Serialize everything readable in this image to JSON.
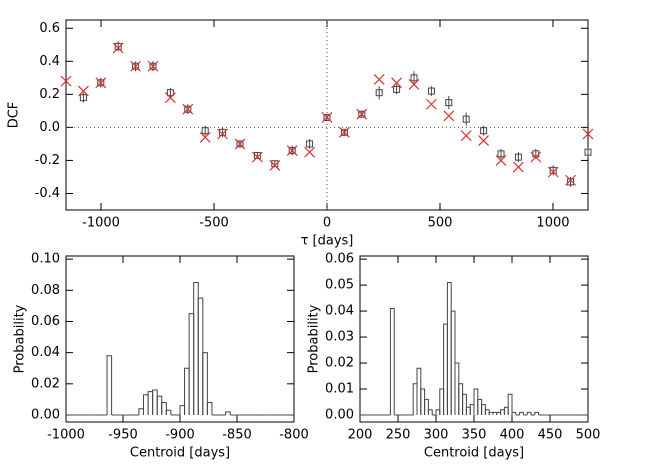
{
  "chart_data": [
    {
      "type": "scatter",
      "xlabel": "τ [days]",
      "ylabel": "DCF",
      "x": [
        -1155,
        -1078,
        -1001,
        -924,
        -847,
        -770,
        -693,
        -616,
        -539,
        -462,
        -385,
        -308,
        -231,
        -154,
        -77,
        0,
        77,
        154,
        231,
        308,
        385,
        462,
        539,
        616,
        693,
        770,
        847,
        924,
        1001,
        1078,
        1155
      ],
      "xlim": [
        -1155,
        1155
      ],
      "xticks": [
        -1000,
        -500,
        0,
        500,
        1000
      ],
      "ylim": [
        -0.5,
        0.65
      ],
      "yticks": [
        -0.4,
        -0.2,
        {
          "value": 0,
          "label": "0.0"
        },
        0.2,
        0.4,
        0.6
      ],
      "series": [
        {
          "color": "#444444",
          "marker": "square",
          "values": [
            null,
            0.18,
            0.27,
            0.49,
            0.37,
            0.37,
            0.21,
            0.11,
            -0.02,
            -0.03,
            -0.1,
            -0.17,
            -0.22,
            -0.14,
            -0.1,
            0.06,
            -0.03,
            0.08,
            0.21,
            0.23,
            0.3,
            0.22,
            0.15,
            0.05,
            -0.02,
            -0.16,
            -0.18,
            -0.16,
            -0.26,
            -0.33,
            -0.15
          ],
          "errors": [
            null,
            0.03,
            0.03,
            0.03,
            0.03,
            0.03,
            0.03,
            0.03,
            0.03,
            0.03,
            0.02,
            0.02,
            0.02,
            0.03,
            0.03,
            0.02,
            0.02,
            0.02,
            0.04,
            0.03,
            0.04,
            0.03,
            0.04,
            0.04,
            0.03,
            0.03,
            0.03,
            0.03,
            0.03,
            0.03,
            0.03
          ]
        },
        {
          "color": "#e03030",
          "marker": "cross",
          "values": [
            0.28,
            0.22,
            0.27,
            0.48,
            0.37,
            0.37,
            0.18,
            0.11,
            -0.06,
            -0.04,
            -0.1,
            -0.18,
            -0.23,
            -0.14,
            -0.15,
            0.06,
            -0.03,
            0.08,
            0.29,
            0.27,
            0.26,
            0.14,
            0.07,
            -0.05,
            -0.08,
            -0.2,
            -0.24,
            -0.18,
            -0.27,
            -0.32,
            -0.04
          ]
        }
      ]
    },
    {
      "type": "histogram",
      "xlabel": "Centroid [days]",
      "ylabel": "Probability",
      "color": "#444444",
      "bins": [
        -1000,
        -996,
        -992,
        -988,
        -984,
        -980,
        -976,
        -972,
        -968,
        -964,
        -960,
        -956,
        -952,
        -948,
        -944,
        -940,
        -936,
        -932,
        -928,
        -924,
        -920,
        -916,
        -912,
        -908,
        -904,
        -900,
        -896,
        -892,
        -888,
        -884,
        -880,
        -876,
        -872,
        -868,
        -864,
        -860,
        -856,
        -852,
        -848,
        -844,
        -840,
        -836,
        -832,
        -828,
        -824,
        -820,
        -816,
        -812,
        -808,
        -804,
        -800
      ],
      "counts": [
        0,
        0,
        0,
        0,
        0,
        0,
        0,
        0,
        0,
        0.038,
        0,
        0,
        0,
        0,
        0,
        0,
        0.004,
        0.013,
        0.015,
        0.016,
        0.012,
        0.008,
        0.003,
        0,
        0,
        0.006,
        0.03,
        0.065,
        0.085,
        0.075,
        0.04,
        0.008,
        0,
        0,
        0,
        0.002,
        0,
        0,
        0,
        0,
        0,
        0,
        0,
        0,
        0,
        0,
        0,
        0,
        0,
        0
      ],
      "xlim": [
        -1000,
        -800
      ],
      "xticks": [
        -1000,
        -950,
        -900,
        -850,
        -800
      ],
      "ylim": [
        -0.0045,
        0.102
      ],
      "yticks": [
        {
          "value": 0,
          "label": "0.00"
        },
        {
          "value": 0.02,
          "label": "0.02"
        },
        {
          "value": 0.04,
          "label": "0.04"
        },
        {
          "value": 0.06,
          "label": "0.06"
        },
        {
          "value": 0.08,
          "label": "0.08"
        },
        {
          "value": 0.1,
          "label": "0.10"
        }
      ]
    },
    {
      "type": "histogram",
      "xlabel": "Centroid [days]",
      "ylabel": "Probability",
      "color": "#444444",
      "bins": [
        200,
        205,
        210,
        215,
        220,
        225,
        230,
        235,
        240,
        245,
        250,
        255,
        260,
        265,
        270,
        275,
        280,
        285,
        290,
        295,
        300,
        305,
        310,
        315,
        320,
        325,
        330,
        335,
        340,
        345,
        350,
        355,
        360,
        365,
        370,
        375,
        380,
        385,
        390,
        395,
        400,
        405,
        410,
        415,
        420,
        425,
        430,
        435,
        440,
        445,
        450,
        455,
        460,
        465,
        470,
        475,
        480,
        485,
        490,
        495,
        500
      ],
      "counts": [
        0,
        0,
        0,
        0,
        0,
        0,
        0,
        0,
        0.041,
        0,
        0,
        0,
        0,
        0,
        0.012,
        0.018,
        0.01,
        0.006,
        0.002,
        0,
        0.002,
        0.01,
        0.035,
        0.051,
        0.04,
        0.02,
        0.012,
        0.008,
        0.003,
        0.004,
        0.01,
        0.006,
        0.004,
        0.002,
        0.001,
        0.001,
        0.001,
        0.002,
        0.003,
        0.008,
        0.001,
        0,
        0.001,
        0,
        0.001,
        0,
        0.001,
        0,
        0,
        0,
        0,
        0,
        0,
        0,
        0,
        0,
        0,
        0,
        0,
        0
      ],
      "xlim": [
        200,
        500
      ],
      "xticks": [
        200,
        250,
        300,
        350,
        400,
        450,
        500
      ],
      "ylim": [
        -0.0027,
        0.0612
      ],
      "yticks": [
        {
          "value": 0,
          "label": "0.00"
        },
        {
          "value": 0.01,
          "label": "0.01"
        },
        {
          "value": 0.02,
          "label": "0.02"
        },
        {
          "value": 0.03,
          "label": "0.03"
        },
        {
          "value": 0.04,
          "label": "0.04"
        },
        {
          "value": 0.05,
          "label": "0.05"
        },
        {
          "value": 0.06,
          "label": "0.06"
        }
      ]
    }
  ]
}
